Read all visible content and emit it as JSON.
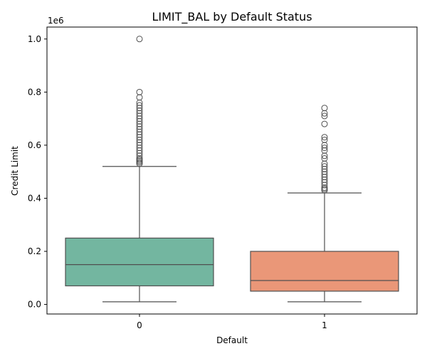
{
  "chart_data": {
    "type": "box",
    "title": "LIMIT_BAL by Default Status",
    "xlabel": "Default",
    "ylabel": "Credit Limit",
    "y_offset_label": "1e6",
    "ylim": [
      -36000,
      1045000
    ],
    "yticks": [
      0.0,
      0.2,
      0.4,
      0.6,
      0.8,
      1.0
    ],
    "ytick_labels": [
      "0.0",
      "0.2",
      "0.4",
      "0.6",
      "0.8",
      "1.0"
    ],
    "y_scale_factor": 1000000,
    "categories": [
      "0",
      "1"
    ],
    "grid": false,
    "boxes": [
      {
        "category": "0",
        "color": "#73b6a0",
        "whisker_low": 10000,
        "q1": 70000,
        "median": 150000,
        "q3": 250000,
        "whisker_high": 520000,
        "outliers": [
          530000,
          535000,
          540000,
          545000,
          550000,
          560000,
          570000,
          580000,
          590000,
          600000,
          610000,
          620000,
          630000,
          640000,
          650000,
          660000,
          670000,
          680000,
          690000,
          700000,
          710000,
          720000,
          730000,
          740000,
          750000,
          760000,
          780000,
          800000,
          1000000
        ]
      },
      {
        "category": "1",
        "color": "#ea9778",
        "whisker_low": 10000,
        "q1": 50000,
        "median": 90000,
        "q3": 200000,
        "whisker_high": 420000,
        "outliers": [
          430000,
          435000,
          440000,
          450000,
          460000,
          470000,
          480000,
          490000,
          500000,
          510000,
          520000,
          530000,
          550000,
          560000,
          580000,
          590000,
          600000,
          620000,
          630000,
          680000,
          710000,
          720000,
          740000
        ]
      }
    ]
  }
}
